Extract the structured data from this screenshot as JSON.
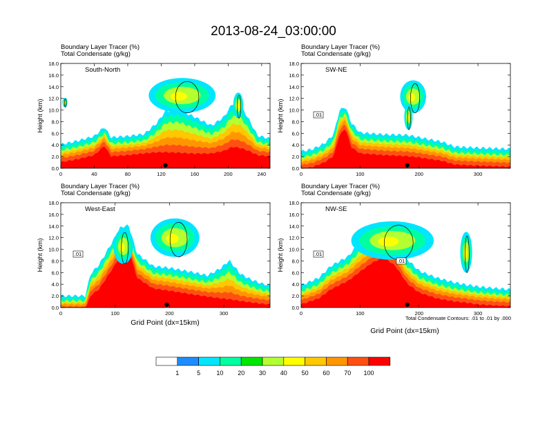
{
  "figure": {
    "title": "2013-08-24_03:00:00",
    "footnote": "Total Condensate Contours: .01 to .01 by .000"
  },
  "colors": {
    "scale": [
      "#ffffff",
      "#1e8cff",
      "#00e6ff",
      "#00ffa0",
      "#00e600",
      "#b4ff32",
      "#ffff00",
      "#ffc800",
      "#ff9600",
      "#ff5014",
      "#ff0000"
    ],
    "contour": "#000000"
  },
  "chart_data": [
    {
      "type": "heatmap",
      "name": "South-North",
      "label": "South-North",
      "subtitle_1": "Boundary Layer Tracer   (%)",
      "subtitle_2": "Total Condensate   (g/kg)",
      "ylabel": "Height (km)",
      "xlabel": "",
      "xlim": [
        0,
        250
      ],
      "ylim": [
        0,
        18
      ],
      "xticks": [
        0,
        40,
        80,
        120,
        160,
        200,
        240
      ],
      "yticks": [
        "0.0",
        "2.0",
        "4.0",
        "6.0",
        "8.0",
        "10.0",
        "12.0",
        "14.0",
        "16.0",
        "18.0"
      ],
      "surface_x": 125,
      "contour_labels": [],
      "tracer_profile": {
        "x": [
          0,
          20,
          40,
          52,
          60,
          80,
          100,
          115,
          125,
          140,
          160,
          180,
          195,
          205,
          215,
          225,
          235,
          250
        ],
        "low": [
          2.0,
          2.5,
          3.2,
          4.8,
          3.0,
          3.2,
          3.5,
          3.6,
          3.5,
          3.4,
          3.3,
          3.4,
          3.8,
          4.4,
          4.2,
          3.8,
          3.2,
          3.0
        ],
        "high": [
          2.8,
          3.4,
          4.2,
          5.8,
          4.0,
          4.2,
          4.6,
          6.5,
          8.5,
          8.8,
          7.5,
          6.0,
          7.5,
          9.8,
          9.5,
          7.0,
          4.3,
          3.8
        ]
      },
      "clouds": [
        {
          "x": 145,
          "y": 12.5,
          "rx": 40,
          "ry": 3.0
        },
        {
          "x": 212,
          "y": 10.8,
          "rx": 6,
          "ry": 2.2
        },
        {
          "x": 5,
          "y": 11.3,
          "rx": 3,
          "ry": 0.8
        }
      ]
    },
    {
      "type": "heatmap",
      "name": "SW-NE",
      "label": "SW-NE",
      "subtitle_1": "Boundary Layer Tracer   (%)",
      "subtitle_2": "Total Condensate   (g/kg)",
      "ylabel": "Height (km)",
      "xlabel": "",
      "xlim": [
        0,
        355
      ],
      "ylim": [
        0,
        18
      ],
      "xticks": [
        0,
        100,
        200,
        300
      ],
      "yticks": [
        "0.0",
        "2.0",
        "4.0",
        "6.0",
        "8.0",
        "10.0",
        "12.0",
        "14.0",
        "16.0",
        "18.0"
      ],
      "surface_x": 180,
      "contour_labels": [
        ".01"
      ],
      "tracer_profile": {
        "x": [
          0,
          20,
          40,
          55,
          65,
          75,
          85,
          100,
          140,
          180,
          200,
          240,
          260,
          300,
          330,
          355
        ],
        "low": [
          0.8,
          1.2,
          2.0,
          3.0,
          6.5,
          7.8,
          4.5,
          3.5,
          3.2,
          3.0,
          2.8,
          2.2,
          1.6,
          1.4,
          1.3,
          1.2
        ],
        "high": [
          1.6,
          2.0,
          3.0,
          4.5,
          8.6,
          9.3,
          6.5,
          4.8,
          4.5,
          4.4,
          4.0,
          3.2,
          2.4,
          2.2,
          2.1,
          2.0
        ]
      },
      "clouds": [
        {
          "x": 190,
          "y": 12.3,
          "rx": 22,
          "ry": 2.8
        },
        {
          "x": 182,
          "y": 8.8,
          "rx": 7,
          "ry": 2.2
        }
      ]
    },
    {
      "type": "heatmap",
      "name": "West-East",
      "label": "West-East",
      "subtitle_1": "Boundary Layer Tracer   (%)",
      "subtitle_2": "Total Condensate   (g/kg)",
      "ylabel": "Height (km)",
      "xlabel": "Grid Point (dx=15km)",
      "xlim": [
        0,
        385
      ],
      "ylim": [
        0,
        18
      ],
      "xticks": [
        0,
        100,
        200,
        300
      ],
      "yticks": [
        "0.0",
        "2.0",
        "4.0",
        "6.0",
        "8.0",
        "10.0",
        "12.0",
        "14.0",
        "16.0",
        "18.0"
      ],
      "surface_x": 195,
      "contour_labels": [
        ".01"
      ],
      "tracer_profile": {
        "x": [
          0,
          45,
          55,
          70,
          95,
          110,
          125,
          140,
          170,
          200,
          240,
          270,
          295,
          310,
          330,
          350,
          370,
          385
        ],
        "low": [
          0.5,
          0.5,
          3.0,
          4.0,
          7.5,
          9.8,
          11.0,
          6.0,
          4.2,
          3.8,
          3.2,
          2.8,
          2.4,
          2.2,
          2.0,
          1.8,
          1.6,
          1.5
        ],
        "high": [
          0.7,
          0.7,
          4.5,
          6.0,
          10.0,
          12.5,
          12.8,
          8.0,
          5.8,
          5.5,
          4.8,
          4.2,
          5.5,
          6.8,
          4.5,
          3.5,
          2.8,
          2.5
        ]
      },
      "clouds": [
        {
          "x": 210,
          "y": 12.0,
          "rx": 45,
          "ry": 3.3
        },
        {
          "x": 115,
          "y": 10.5,
          "rx": 18,
          "ry": 3.0
        }
      ]
    },
    {
      "type": "heatmap",
      "name": "NW-SE",
      "label": "NW-SE",
      "subtitle_1": "Boundary Layer Tracer   (%)",
      "subtitle_2": "Total Condensate   (g/kg)",
      "ylabel": "Height (km)",
      "xlabel": "Grid Point (dx=15km)",
      "xlim": [
        0,
        355
      ],
      "ylim": [
        0,
        18
      ],
      "xticks": [
        0,
        100,
        200,
        300
      ],
      "yticks": [
        "0.0",
        "2.0",
        "4.0",
        "6.0",
        "8.0",
        "10.0",
        "12.0",
        "14.0",
        "16.0",
        "18.0"
      ],
      "surface_x": 180,
      "contour_labels": [
        ".01",
        ".01"
      ],
      "tracer_profile": {
        "x": [
          0,
          30,
          50,
          80,
          100,
          120,
          140,
          160,
          180,
          200,
          230,
          260,
          280,
          300,
          330,
          355
        ],
        "low": [
          1.5,
          2.5,
          4.0,
          5.5,
          7.0,
          8.5,
          9.5,
          8.0,
          5.0,
          3.5,
          2.5,
          2.0,
          1.8,
          1.5,
          1.3,
          1.2
        ],
        "high": [
          2.5,
          3.8,
          5.8,
          7.5,
          10.0,
          11.5,
          12.5,
          10.5,
          7.0,
          5.0,
          3.8,
          3.0,
          2.6,
          2.3,
          2.0,
          1.8
        ]
      },
      "clouds": [
        {
          "x": 155,
          "y": 11.5,
          "rx": 70,
          "ry": 3.3
        },
        {
          "x": 280,
          "y": 9.5,
          "rx": 10,
          "ry": 3.5
        }
      ]
    }
  ],
  "colorbar": {
    "labels": [
      "1",
      "5",
      "10",
      "20",
      "30",
      "40",
      "50",
      "60",
      "70",
      "100"
    ]
  }
}
